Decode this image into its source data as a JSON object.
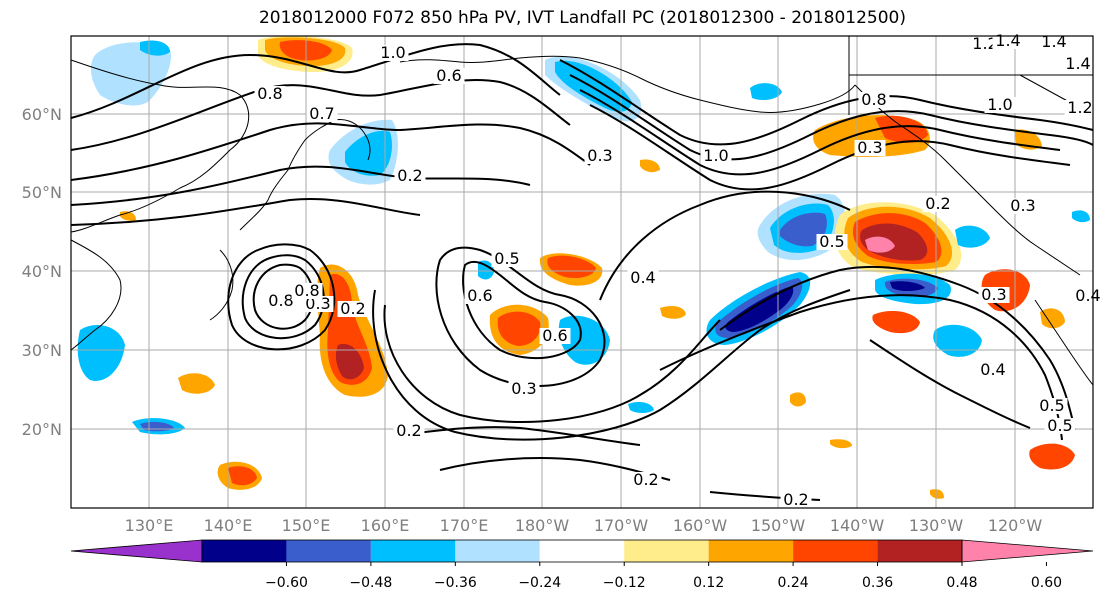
{
  "title": "2018012000 F072 850 hPa PV, IVT Landfall PC (2018012300 - 2018012500)",
  "lat_labels": [
    "60°N",
    "50°N",
    "40°N",
    "30°N",
    "20°N"
  ],
  "lon_labels": [
    "130°E",
    "140°E",
    "150°E",
    "160°E",
    "170°E",
    "180°W",
    "170°W",
    "160°W",
    "150°W",
    "140°W",
    "130°W",
    "120°W"
  ],
  "contour_labels": [
    "1.0",
    "0.6",
    "1.2",
    "1.4",
    "0.8",
    "0.7",
    "0.8",
    "1.0",
    "0.2",
    "0.4",
    "0.3",
    "0.8",
    "0.3",
    "0.5",
    "0.2",
    "0.3",
    "0.4",
    "0.6",
    "0.5",
    "0.6",
    "0.3",
    "0.2",
    "0.2",
    "0.2",
    "0.5",
    "0.3",
    "0.4",
    "0.5",
    "0.2",
    "0.8",
    "0.3",
    "1.0",
    "1.4",
    "1.2",
    "1.4"
  ],
  "colorbar": {
    "colors": [
      "#9932cc",
      "#00008b",
      "#3a5fcd",
      "#00bfff",
      "#b0e2ff",
      "#ffffff",
      "#ffec8b",
      "#ffa500",
      "#ff4500",
      "#b22222",
      "#ff82ab"
    ],
    "tick_labels": [
      "−0.60",
      "−0.48",
      "−0.36",
      "−0.24",
      "−0.12",
      "0.12",
      "0.24",
      "0.36",
      "0.48",
      "0.60"
    ]
  },
  "colors": {
    "frame": "#000000",
    "grid": "#aaaaaa",
    "contour": "#000000"
  }
}
